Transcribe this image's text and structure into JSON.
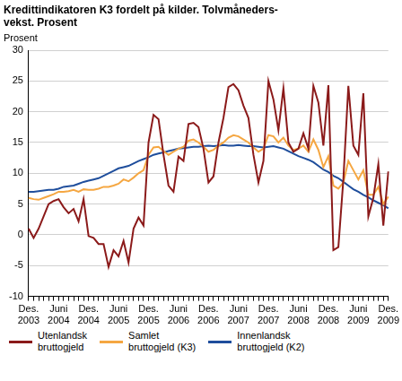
{
  "chart_data": {
    "type": "line",
    "title": [
      "Kredittindikatoren K3 fordelt på kilder. Tolvmåneders-",
      "vekst. Prosent"
    ],
    "y_label": "Prosent",
    "categories": [
      "Des. 2003",
      null,
      null,
      null,
      null,
      null,
      "Juni 2004",
      null,
      null,
      null,
      null,
      null,
      "Des. 2004",
      null,
      null,
      null,
      null,
      null,
      "Juni 2005",
      null,
      null,
      null,
      null,
      null,
      "Des. 2005",
      null,
      null,
      null,
      null,
      null,
      "Juni 2006",
      null,
      null,
      null,
      null,
      null,
      "Des. 2006",
      null,
      null,
      null,
      null,
      null,
      "Juni 2007",
      null,
      null,
      null,
      null,
      null,
      "Des. 2007",
      null,
      null,
      null,
      null,
      null,
      "Juni 2008",
      null,
      null,
      null,
      null,
      null,
      "Des. 2008",
      null,
      null,
      null,
      null,
      null,
      "Juni 2009",
      null,
      null,
      null,
      null,
      null,
      "Des. 2009"
    ],
    "series": [
      {
        "name": "Utenlandsk bruttogjeld",
        "color": "#8b1a1a",
        "values": [
          1,
          -0.5,
          1,
          3,
          5,
          5.5,
          5.8,
          4.5,
          3.5,
          4.2,
          2.2,
          5.8,
          -0.2,
          -0.5,
          -1.5,
          -1.5,
          -5.2,
          -2.5,
          -3.5,
          -1,
          -4.5,
          1,
          2.8,
          1.5,
          15,
          19.5,
          18.8,
          13,
          8,
          7,
          12.7,
          12,
          18,
          18.2,
          17.5,
          14,
          8.5,
          9.5,
          15,
          19,
          24,
          24.5,
          23.5,
          21,
          19,
          13,
          8.5,
          12,
          25,
          22,
          17,
          23.8,
          15,
          13.5,
          14,
          16.5,
          14,
          24.2,
          21.5,
          14.5,
          24.3,
          -2.5,
          -2,
          9,
          24.2,
          14.5,
          13,
          23,
          3,
          6,
          11.5,
          1.5,
          10.3
        ]
      },
      {
        "name": "Samlet bruttogjeld (K3)",
        "color": "#f5a742",
        "values": [
          6,
          5.8,
          5.7,
          6,
          6.3,
          6.6,
          7,
          7,
          7.1,
          7.3,
          7,
          7.4,
          7.3,
          7.3,
          7.5,
          7.8,
          7.8,
          8,
          8.3,
          9,
          8.7,
          9.3,
          10,
          10.5,
          13,
          14.2,
          14.3,
          13.6,
          13,
          13.5,
          14,
          14.3,
          15.3,
          15.5,
          15,
          14.3,
          13.5,
          13.8,
          14.5,
          15,
          15.8,
          16.2,
          16,
          15.5,
          15,
          14.2,
          13.5,
          14,
          16.2,
          16,
          15,
          15.8,
          14.5,
          13.8,
          14,
          14.5,
          13.5,
          15.5,
          13.8,
          11,
          12.8,
          8,
          7.5,
          8.5,
          12,
          10.5,
          9,
          10.5,
          6.5,
          6.5,
          7.8,
          5,
          6.2
        ]
      },
      {
        "name": "Innenlandsk bruttogjeld (K2)",
        "color": "#1f4e9c",
        "values": [
          7,
          7,
          7.1,
          7.2,
          7.3,
          7.3,
          7.5,
          7.8,
          7.9,
          8,
          8.3,
          8.6,
          8.8,
          9,
          9.2,
          9.6,
          10,
          10.4,
          10.8,
          11,
          11.2,
          11.6,
          12,
          12.3,
          12.6,
          13,
          13.2,
          13.4,
          13.6,
          13.8,
          14,
          14.1,
          14.2,
          14.3,
          14.3,
          14.4,
          14.5,
          14.4,
          14.5,
          14.6,
          14.5,
          14.5,
          14.6,
          14.5,
          14.4,
          14.4,
          14.3,
          14.2,
          14.3,
          14.4,
          14.2,
          14,
          13.6,
          13.2,
          12.8,
          12.5,
          12.2,
          11.8,
          11.2,
          10.6,
          10.2,
          9.6,
          9.2,
          8.6,
          8,
          7.4,
          7,
          6.5,
          6.1,
          5.6,
          5.2,
          4.8,
          4.3
        ]
      }
    ],
    "ylim": [
      -10,
      30
    ],
    "yticks": [
      -10,
      -5,
      0,
      5,
      10,
      15,
      20,
      25,
      30
    ],
    "grid": true,
    "legend": "bottom"
  }
}
